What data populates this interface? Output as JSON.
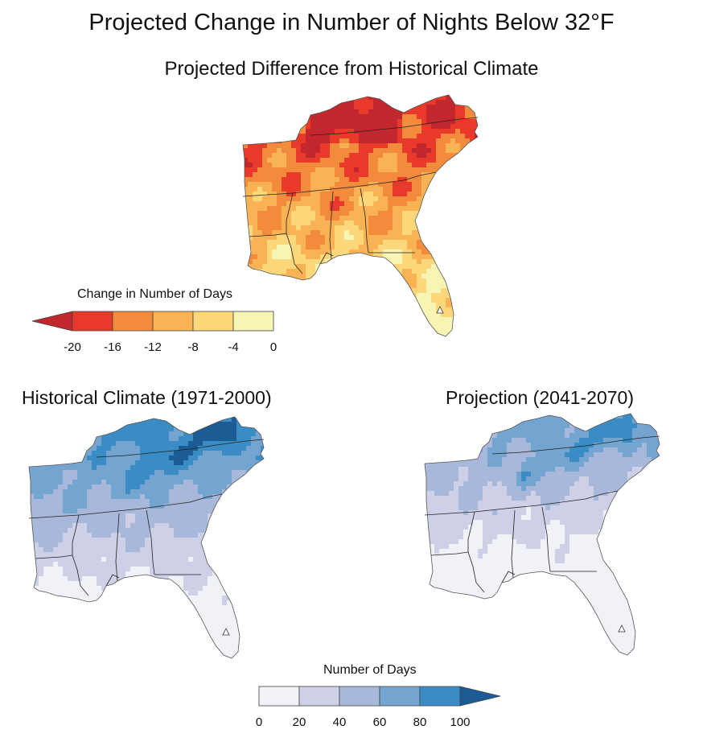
{
  "figure": {
    "title": "Projected Change in Number of Nights Below 32°F",
    "subtitle": "Projected Difference from Historical Climate"
  },
  "panels": {
    "historical_title": "Historical Climate (1971-2000)",
    "projection_title": "Projection (2041-2070)"
  },
  "change_legend": {
    "title": "Change in Number of Days",
    "ticks": [
      "-20",
      "-16",
      "-12",
      "-8",
      "-4",
      "0"
    ],
    "colors": [
      "#c1272d",
      "#e8392a",
      "#f28b3c",
      "#f9b355",
      "#fcd87a",
      "#f8f4b4"
    ]
  },
  "days_legend": {
    "title": "Number of Days",
    "ticks": [
      "0",
      "20",
      "40",
      "60",
      "80",
      "100"
    ],
    "colors": [
      "#f1f1f8",
      "#cdd0e7",
      "#a7b8da",
      "#74a4d0",
      "#3a8dc4",
      "#1b5c94"
    ]
  },
  "maps": {
    "change_colors": [
      "#c1272d",
      "#e8392a",
      "#f28b3c",
      "#f9b355",
      "#fcd87a",
      "#f8f4b4"
    ],
    "days_colors": [
      "#f1f1f8",
      "#cdd0e7",
      "#a7b8da",
      "#74a4d0",
      "#3a8dc4",
      "#1b5c94"
    ],
    "border_color": "#222222"
  }
}
